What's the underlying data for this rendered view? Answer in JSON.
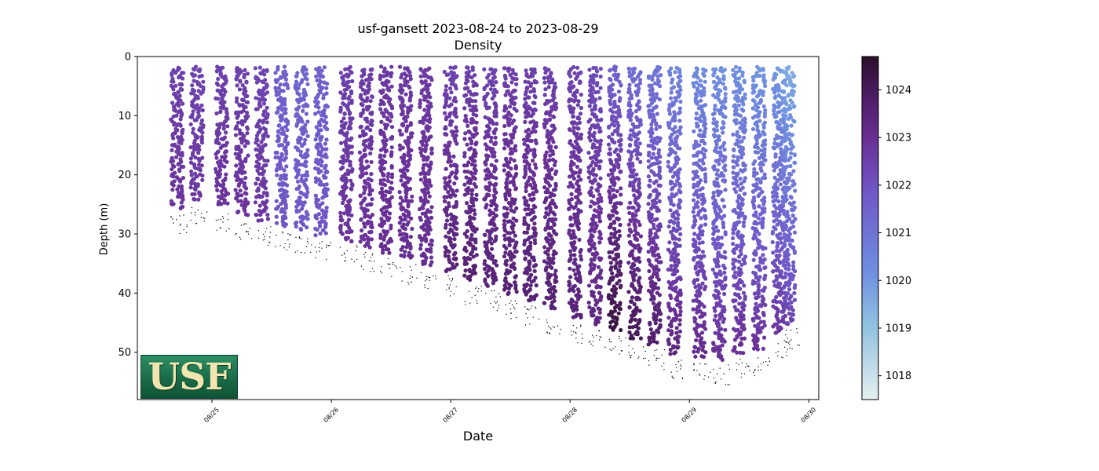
{
  "chart_data": {
    "type": "scatter",
    "title": "usf-gansett 2023-08-24 to 2023-08-29",
    "subtitle": "Density",
    "xlabel": "Date",
    "ylabel": "Depth (m)",
    "x_ticks": [
      "08/25",
      "08/26",
      "08/27",
      "08/28",
      "08/29",
      "08/30"
    ],
    "y_ticks": [
      0,
      10,
      20,
      30,
      40,
      50
    ],
    "colorbar_ticks": [
      1018,
      1019,
      1020,
      1021,
      1022,
      1023,
      1024
    ],
    "xlim": [
      "2023-08-24T09:00",
      "2023-08-30T02:00"
    ],
    "ylim": [
      58,
      0
    ],
    "y_inverted": true,
    "colorbar_range": [
      1017.5,
      1024.7
    ],
    "colormap": "dense",
    "colormap_colors": [
      "#e6f0f0",
      "#8fc0e0",
      "#6f8fe0",
      "#7059c8",
      "#6a3198",
      "#4a1a5e",
      "#2a0f2a"
    ],
    "dive_profiles": [
      {
        "time": "2023-08-24T17:00",
        "max_depth": 25.5,
        "density": 1022.6
      },
      {
        "time": "2023-08-24T21:00",
        "max_depth": 24.0,
        "density": 1022.5
      },
      {
        "time": "2023-08-25T02:00",
        "max_depth": 25.0,
        "density": 1022.6
      },
      {
        "time": "2023-08-25T06:00",
        "max_depth": 26.5,
        "density": 1022.6
      },
      {
        "time": "2023-08-25T10:00",
        "max_depth": 27.5,
        "density": 1022.5
      },
      {
        "time": "2023-08-25T14:00",
        "max_depth": 28.5,
        "density": 1021.7
      },
      {
        "time": "2023-08-25T18:00",
        "max_depth": 29.0,
        "density": 1021.6
      },
      {
        "time": "2023-08-25T22:00",
        "max_depth": 30.0,
        "density": 1021.7
      },
      {
        "time": "2023-08-26T03:00",
        "max_depth": 31.0,
        "density": 1022.6
      },
      {
        "time": "2023-08-26T07:00",
        "max_depth": 32.0,
        "density": 1022.7
      },
      {
        "time": "2023-08-26T11:00",
        "max_depth": 33.0,
        "density": 1022.8
      },
      {
        "time": "2023-08-26T15:00",
        "max_depth": 34.0,
        "density": 1022.8
      },
      {
        "time": "2023-08-26T19:00",
        "max_depth": 35.0,
        "density": 1022.8
      },
      {
        "time": "2023-08-27T00:00",
        "max_depth": 36.0,
        "density": 1022.8
      },
      {
        "time": "2023-08-27T04:00",
        "max_depth": 37.5,
        "density": 1022.9
      },
      {
        "time": "2023-08-27T08:00",
        "max_depth": 38.5,
        "density": 1022.8
      },
      {
        "time": "2023-08-27T12:00",
        "max_depth": 40.0,
        "density": 1022.9
      },
      {
        "time": "2023-08-27T16:00",
        "max_depth": 41.0,
        "density": 1022.9
      },
      {
        "time": "2023-08-27T20:00",
        "max_depth": 42.5,
        "density": 1022.9
      },
      {
        "time": "2023-08-28T01:00",
        "max_depth": 44.0,
        "density": 1022.8
      },
      {
        "time": "2023-08-28T05:00",
        "max_depth": 45.0,
        "density": 1022.6
      },
      {
        "time": "2023-08-28T09:00",
        "max_depth": 46.0,
        "density": 1022.6
      },
      {
        "time": "2023-08-28T13:00",
        "max_depth": 47.5,
        "density": 1022.3
      },
      {
        "time": "2023-08-28T17:00",
        "max_depth": 48.5,
        "density": 1022.0
      },
      {
        "time": "2023-08-28T21:00",
        "max_depth": 50.0,
        "density": 1021.6
      },
      {
        "time": "2023-08-29T02:00",
        "max_depth": 50.5,
        "density": 1021.4
      },
      {
        "time": "2023-08-29T06:00",
        "max_depth": 51.0,
        "density": 1021.2
      },
      {
        "time": "2023-08-29T10:00",
        "max_depth": 50.0,
        "density": 1021.2
      },
      {
        "time": "2023-08-29T14:00",
        "max_depth": 49.5,
        "density": 1021.1
      },
      {
        "time": "2023-08-29T18:00",
        "max_depth": 46.5,
        "density": 1021.0
      },
      {
        "time": "2023-08-29T20:00",
        "max_depth": 45.0,
        "density": 1020.6
      }
    ]
  },
  "logo": {
    "text": "USF"
  }
}
